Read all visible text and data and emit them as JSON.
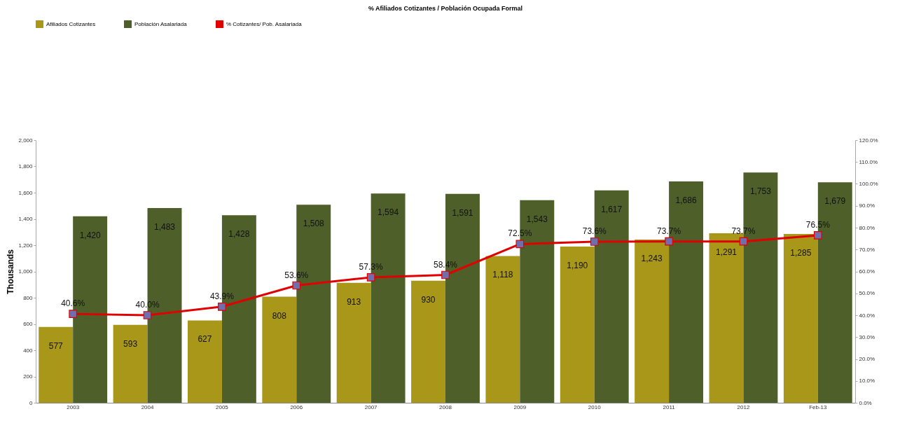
{
  "chart_data": {
    "type": "bar",
    "title": "% Afiliados  Cotizantes / Población Ocupada Formal",
    "ylabel": "Thousands",
    "categories": [
      "2003",
      "2004",
      "2005",
      "2006",
      "2007",
      "2008",
      "2009",
      "2010",
      "2011",
      "2012",
      "Feb-13"
    ],
    "series": [
      {
        "name": "Afiliados Cotizantes",
        "color": "#a89719",
        "values": [
          577,
          593,
          627,
          808,
          913,
          930,
          1118,
          1190,
          1243,
          1291,
          1285
        ],
        "value_labels": [
          "577",
          "593",
          "627",
          "808",
          "913",
          "930",
          "1,118",
          "1,190",
          "1,243",
          "1,291",
          "1,285"
        ]
      },
      {
        "name": "Población Asalariada",
        "color": "#4e5f2a",
        "values": [
          1420,
          1483,
          1428,
          1508,
          1594,
          1591,
          1543,
          1617,
          1686,
          1753,
          1679
        ],
        "value_labels": [
          "1,420",
          "1,483",
          "1,428",
          "1,508",
          "1,594",
          "1,591",
          "1,543",
          "1,617",
          "1,686",
          "1,753",
          "1,679"
        ]
      },
      {
        "name": "% Cotizantes/ Pob. Asalariada",
        "type": "line",
        "axis": "y2",
        "color": "#e00000",
        "values": [
          40.6,
          40.0,
          43.9,
          53.6,
          57.3,
          58.4,
          72.5,
          73.6,
          73.7,
          73.7,
          76.5
        ],
        "value_labels": [
          "40.6%",
          "40.0%",
          "43.9%",
          "53.6%",
          "57.3%",
          "58.4%",
          "72.5%",
          "73.6%",
          "73.7%",
          "73.7%",
          "76.5%"
        ]
      }
    ],
    "ylim": [
      0,
      2000
    ],
    "yticks": [
      0,
      200,
      400,
      600,
      800,
      {
        "value": 1000,
        "label": "1,000"
      },
      {
        "value": 1200,
        "label": "1,200"
      },
      {
        "value": 1400,
        "label": "1,400"
      },
      {
        "value": 1600,
        "label": "1,600"
      },
      {
        "value": 1800,
        "label": "1,800"
      },
      {
        "value": 2000,
        "label": "2,000"
      }
    ],
    "y2lim": [
      0,
      120
    ],
    "y2ticks": [
      {
        "value": 0,
        "label": "0.0%"
      },
      {
        "value": 10,
        "label": "10.0%"
      },
      {
        "value": 20,
        "label": "20.0%"
      },
      {
        "value": 30,
        "label": "30.0%"
      },
      {
        "value": 40,
        "label": "40.0%"
      },
      {
        "value": 50,
        "label": "50.0%"
      },
      {
        "value": 60,
        "label": "60.0%"
      },
      {
        "value": 70,
        "label": "70.0%"
      },
      {
        "value": 80,
        "label": "80.0%"
      },
      {
        "value": 90,
        "label": "90.0%"
      },
      {
        "value": 100,
        "label": "100.0%"
      },
      {
        "value": 110,
        "label": "110.0%"
      },
      {
        "value": 120,
        "label": "120.0%"
      }
    ],
    "grid": false,
    "legend": "top",
    "marker": "square",
    "line_style": "solid"
  }
}
